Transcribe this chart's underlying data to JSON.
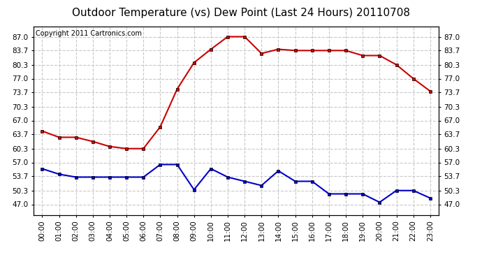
{
  "title": "Outdoor Temperature (vs) Dew Point (Last 24 Hours) 20110708",
  "copyright": "Copyright 2011 Cartronics.com",
  "hours": [
    "00:00",
    "01:00",
    "02:00",
    "03:00",
    "04:00",
    "05:00",
    "06:00",
    "07:00",
    "08:00",
    "09:00",
    "10:00",
    "11:00",
    "12:00",
    "13:00",
    "14:00",
    "15:00",
    "16:00",
    "17:00",
    "18:00",
    "19:00",
    "20:00",
    "21:00",
    "22:00",
    "23:00"
  ],
  "temp": [
    64.5,
    63.0,
    63.0,
    62.0,
    60.8,
    60.3,
    60.3,
    65.5,
    74.5,
    80.8,
    84.0,
    87.0,
    87.0,
    83.0,
    84.0,
    83.7,
    83.7,
    83.7,
    83.7,
    82.5,
    82.5,
    80.3,
    77.0,
    74.0
  ],
  "dew": [
    55.5,
    54.2,
    53.5,
    53.5,
    53.5,
    53.5,
    53.5,
    56.5,
    56.5,
    50.5,
    55.5,
    53.5,
    52.5,
    51.5,
    55.0,
    52.5,
    52.5,
    49.5,
    49.5,
    49.5,
    47.5,
    50.3,
    50.3,
    48.5
  ],
  "temp_color": "#cc0000",
  "dew_color": "#0000cc",
  "bg_color": "#ffffff",
  "grid_color": "#c8c8c8",
  "yticks": [
    47.0,
    50.3,
    53.7,
    57.0,
    60.3,
    63.7,
    67.0,
    70.3,
    73.7,
    77.0,
    80.3,
    83.7,
    87.0
  ],
  "ylim": [
    44.5,
    89.5
  ],
  "title_fontsize": 11,
  "copyright_fontsize": 7,
  "tick_fontsize": 7.5,
  "marker": "s",
  "markersize": 3,
  "linewidth": 1.5
}
